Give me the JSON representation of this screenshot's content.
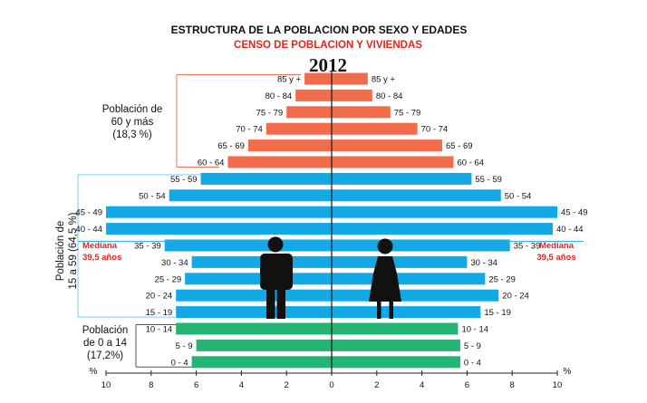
{
  "colors": {
    "group_60_plus": "#f26b4a",
    "group_15_59": "#13a9e6",
    "group_0_14": "#22b573",
    "bracket_60_plus": "#e8745a",
    "bracket_15_59": "#7fcdf0",
    "bracket_0_14": "#555555",
    "median_line": "#3aaee8",
    "highlight_text": "#e3241b"
  },
  "icons": {
    "male": "man-silhouette-icon",
    "female": "woman-silhouette-icon"
  },
  "chart_data": {
    "type": "bar",
    "orientation": "horizontal",
    "layout": "population-pyramid",
    "title": "ESTRUCTURA DE LA POBLACION POR SEXO Y EDADES",
    "subtitle": "CENSO DE POBLACION Y VIVIENDAS",
    "year_label": "2012",
    "xlabel_left": "%",
    "xlabel_right": "%",
    "xlim": [
      -10,
      10
    ],
    "x_ticks": [
      10,
      8,
      6,
      4,
      2,
      0,
      2,
      4,
      6,
      8,
      10
    ],
    "grid": false,
    "categories": [
      "85 y +",
      "80 - 84",
      "75 - 79",
      "70 - 74",
      "65 - 69",
      "60 - 64",
      "55 - 59",
      "50 - 54",
      "45 - 49",
      "40 - 44",
      "35 - 39",
      "30 - 34",
      "25 - 29",
      "20 - 24",
      "15 - 19",
      "10 - 14",
      "5 - 9",
      "0 - 4"
    ],
    "series": [
      {
        "side": "left",
        "values": [
          1.2,
          1.6,
          2.0,
          2.9,
          3.7,
          4.6,
          5.8,
          7.2,
          10.0,
          10.0,
          7.4,
          6.2,
          6.5,
          6.9,
          6.9,
          6.9,
          6.0,
          6.2
        ]
      },
      {
        "side": "right",
        "values": [
          1.6,
          1.8,
          2.6,
          3.8,
          4.9,
          5.4,
          6.2,
          7.5,
          10.0,
          9.8,
          7.9,
          6.0,
          6.8,
          7.4,
          6.6,
          5.6,
          5.7,
          5.7
        ]
      }
    ],
    "groups": [
      {
        "label_lines": [
          "Población de",
          "60 y más",
          "(18,3 %)"
        ],
        "from": "60 - 64",
        "to": "85 y +"
      },
      {
        "label_lines": [
          "Población de",
          "15 a 59 (64,5 %)"
        ],
        "from": "15 - 19",
        "to": "55 - 59"
      },
      {
        "label_lines": [
          "Población",
          "de 0 a 14",
          "(17,2%)"
        ],
        "from": "0 - 4",
        "to": "10 - 14"
      }
    ],
    "annotations": [
      {
        "text_lines": [
          "Mediana",
          "39,5 años"
        ],
        "side": "left",
        "age_value": 39.5
      },
      {
        "text_lines": [
          "Mediana",
          "39,5 años"
        ],
        "side": "right",
        "age_value": 39.5
      }
    ]
  }
}
